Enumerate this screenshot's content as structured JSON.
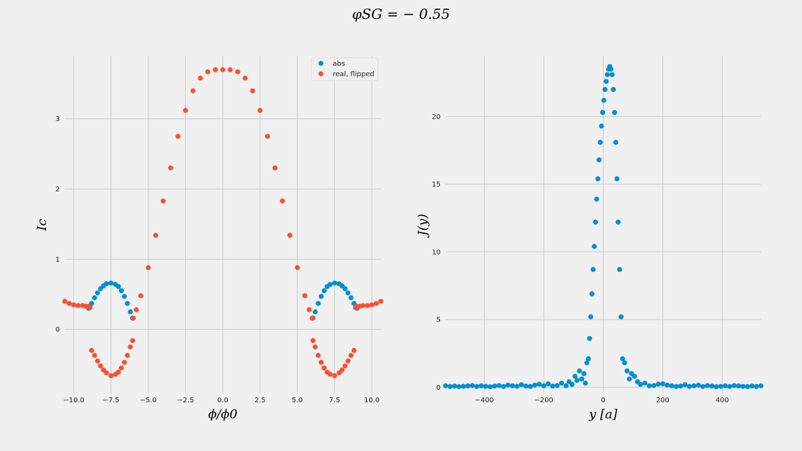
{
  "figure": {
    "title": "φ_SG = −0.55",
    "title_display": "φSG = − 0.55"
  },
  "colors": {
    "background": "#f0f0f0",
    "grid": "#cbcbcb",
    "series_blue": "#008fd5",
    "series_red": "#fc4f30"
  },
  "chart_data": [
    {
      "type": "scatter",
      "xlabel": "ϕ/ϕ0",
      "ylabel": "Ic",
      "xlim": [
        -10.6,
        10.6
      ],
      "ylim": [
        -0.92,
        3.9
      ],
      "xticks": [
        -10.0,
        -7.5,
        -5.0,
        -2.5,
        0.0,
        2.5,
        5.0,
        7.5,
        10.0
      ],
      "xtick_labels": [
        "−10.0",
        "−7.5",
        "−5.0",
        "−2.5",
        "0.0",
        "2.5",
        "5.0",
        "7.5",
        "10.0"
      ],
      "yticks": [
        0,
        1,
        2,
        3
      ],
      "ytick_labels": [
        "0",
        "1",
        "2",
        "3"
      ],
      "grid": true,
      "legend": {
        "placement": "top-right",
        "entries": [
          {
            "label": "abs",
            "color": "#008fd5"
          },
          {
            "label": "real, flipped",
            "color": "#fc4f30"
          }
        ]
      },
      "series": [
        {
          "name": "abs",
          "color": "#008fd5",
          "x": [
            -9.0,
            -8.8,
            -8.6,
            -8.4,
            -8.2,
            -8.0,
            -7.8,
            -7.5,
            -7.2,
            -7.0,
            -6.8,
            -6.6,
            -6.4,
            -6.2,
            -6.05,
            6.05,
            6.2,
            6.4,
            6.6,
            6.8,
            7.0,
            7.2,
            7.5,
            7.8,
            8.0,
            8.2,
            8.4,
            8.6,
            8.8,
            9.0
          ],
          "y": [
            0.3,
            0.37,
            0.45,
            0.52,
            0.58,
            0.62,
            0.65,
            0.66,
            0.64,
            0.61,
            0.55,
            0.47,
            0.37,
            0.25,
            0.16,
            0.16,
            0.25,
            0.37,
            0.47,
            0.55,
            0.61,
            0.64,
            0.66,
            0.65,
            0.62,
            0.58,
            0.52,
            0.45,
            0.37,
            0.3
          ]
        },
        {
          "name": "real, flipped",
          "color": "#fc4f30",
          "x": [
            -10.6,
            -10.3,
            -10.0,
            -9.7,
            -9.4,
            -9.2,
            -9.0,
            -8.9,
            -8.8,
            -8.6,
            -8.4,
            -8.2,
            -8.0,
            -7.8,
            -7.5,
            -7.2,
            -7.0,
            -6.8,
            -6.6,
            -6.4,
            -6.2,
            -6.05,
            -6.0,
            -5.8,
            -5.5,
            -5.0,
            -4.5,
            -4.0,
            -3.5,
            -3.0,
            -2.5,
            -2.0,
            -1.5,
            -1.0,
            -0.5,
            0.0,
            0.5,
            1.0,
            1.5,
            2.0,
            2.5,
            3.0,
            3.5,
            4.0,
            4.5,
            5.0,
            5.5,
            5.8,
            6.0,
            6.05,
            6.2,
            6.4,
            6.6,
            6.8,
            7.0,
            7.2,
            7.5,
            7.8,
            8.0,
            8.2,
            8.4,
            8.6,
            8.8,
            8.9,
            9.0,
            9.2,
            9.4,
            9.7,
            10.0,
            10.3,
            10.6
          ],
          "y": [
            0.4,
            0.37,
            0.35,
            0.34,
            0.34,
            0.33,
            0.33,
            0.31,
            -0.3,
            -0.37,
            -0.45,
            -0.52,
            -0.58,
            -0.62,
            -0.66,
            -0.64,
            -0.61,
            -0.55,
            -0.47,
            -0.37,
            -0.25,
            -0.16,
            0.16,
            0.28,
            0.48,
            0.88,
            1.34,
            1.83,
            2.3,
            2.75,
            3.12,
            3.4,
            3.58,
            3.67,
            3.7,
            3.7,
            3.7,
            3.67,
            3.58,
            3.4,
            3.12,
            2.75,
            2.3,
            1.83,
            1.34,
            0.88,
            0.48,
            0.28,
            0.16,
            -0.16,
            -0.25,
            -0.37,
            -0.47,
            -0.55,
            -0.61,
            -0.64,
            -0.66,
            -0.62,
            -0.58,
            -0.52,
            -0.45,
            -0.37,
            -0.3,
            0.31,
            0.33,
            0.33,
            0.34,
            0.34,
            0.35,
            0.37,
            0.4
          ]
        }
      ]
    },
    {
      "type": "scatter",
      "xlabel": "y [a]",
      "ylabel": "J(y)",
      "xlim": [
        -530,
        530
      ],
      "ylim": [
        -0.5,
        24.5
      ],
      "xticks": [
        -400,
        -200,
        0,
        200,
        400
      ],
      "xtick_labels": [
        "−400",
        "−200",
        "0",
        "200",
        "400"
      ],
      "yticks": [
        0,
        5,
        10,
        15,
        20
      ],
      "ytick_labels": [
        "0",
        "5",
        "10",
        "15",
        "20"
      ],
      "grid": true,
      "series": [
        {
          "name": "J",
          "color": "#008fd5",
          "x": [
            -530,
            -515,
            -500,
            -485,
            -470,
            -455,
            -440,
            -425,
            -410,
            -395,
            -380,
            -365,
            -350,
            -335,
            -320,
            -305,
            -290,
            -275,
            -260,
            -245,
            -230,
            -215,
            -200,
            -185,
            -170,
            -155,
            -140,
            -125,
            -115,
            -105,
            -95,
            -88,
            -80,
            -72,
            -65,
            -60,
            -55,
            -50,
            -46,
            -42,
            -38,
            -34,
            -30,
            -26,
            -22,
            -18,
            -14,
            -10,
            -6,
            -2,
            2,
            6,
            10,
            14,
            18,
            22,
            26,
            30,
            34,
            38,
            42,
            46,
            50,
            55,
            60,
            65,
            72,
            80,
            88,
            95,
            105,
            115,
            125,
            140,
            155,
            170,
            185,
            200,
            215,
            230,
            245,
            260,
            275,
            290,
            305,
            320,
            335,
            350,
            365,
            380,
            395,
            410,
            425,
            440,
            455,
            470,
            485,
            500,
            515,
            530
          ],
          "y": [
            0.1,
            0.05,
            0.08,
            0.04,
            0.06,
            0.09,
            0.12,
            0.05,
            0.1,
            0.06,
            0.03,
            0.08,
            0.12,
            0.05,
            0.15,
            0.1,
            0.06,
            0.18,
            0.08,
            0.05,
            0.15,
            0.22,
            0.1,
            0.25,
            0.08,
            0.12,
            0.3,
            0.1,
            0.4,
            0.2,
            0.8,
            0.5,
            1.2,
            0.6,
            1.0,
            0.3,
            1.8,
            2.1,
            3.6,
            5.2,
            6.9,
            8.7,
            10.4,
            12.2,
            13.9,
            15.4,
            16.8,
            18.1,
            19.3,
            20.3,
            21.2,
            22.0,
            22.6,
            23.1,
            23.5,
            23.7,
            23.5,
            23.1,
            22.0,
            20.3,
            18.1,
            15.4,
            12.2,
            8.7,
            5.2,
            2.1,
            1.8,
            1.2,
            0.6,
            1.0,
            0.8,
            0.4,
            0.2,
            0.3,
            0.1,
            0.12,
            0.22,
            0.25,
            0.15,
            0.1,
            0.05,
            0.08,
            0.18,
            0.06,
            0.1,
            0.15,
            0.05,
            0.12,
            0.08,
            0.03,
            0.06,
            0.1,
            0.05,
            0.12,
            0.09,
            0.06,
            0.04,
            0.08,
            0.05,
            0.1
          ]
        }
      ]
    }
  ]
}
